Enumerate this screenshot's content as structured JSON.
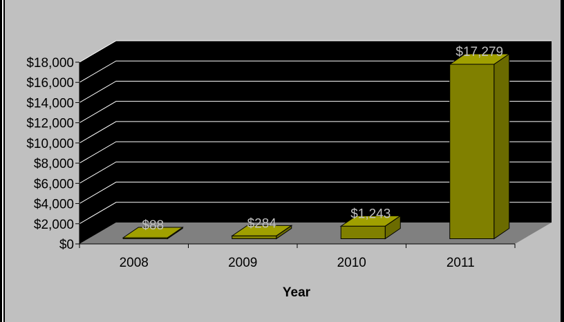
{
  "chart_data": {
    "type": "bar",
    "categories": [
      "2008",
      "2009",
      "2010",
      "2011"
    ],
    "values": [
      88,
      284,
      1243,
      17279
    ],
    "data_labels": [
      "$88",
      "$284",
      "$1,243",
      "$17,279"
    ],
    "title": "",
    "xlabel": "Year",
    "ylabel": "",
    "ylim": [
      0,
      18000
    ],
    "y_ticks": [
      {
        "value": 0,
        "label": "$0"
      },
      {
        "value": 2000,
        "label": "$2,000"
      },
      {
        "value": 4000,
        "label": "$4,000"
      },
      {
        "value": 6000,
        "label": "$6,000"
      },
      {
        "value": 8000,
        "label": "$8,000"
      },
      {
        "value": 10000,
        "label": "$10,000"
      },
      {
        "value": 12000,
        "label": "$12,000"
      },
      {
        "value": 14000,
        "label": "$14,000"
      },
      {
        "value": 16000,
        "label": "$16,000"
      },
      {
        "value": 18000,
        "label": "$18,000"
      }
    ],
    "grid": true,
    "style": "3d-column",
    "colors": {
      "chart_area": "#c0c0c0",
      "back_wall": "#000000",
      "floor": "#808080",
      "bar_front": "#808000",
      "bar_side": "#6b6b00",
      "bar_top": "#a0a000",
      "gridline": "#ffffff",
      "data_label": "#c0c0c0",
      "border": "#000000"
    }
  }
}
